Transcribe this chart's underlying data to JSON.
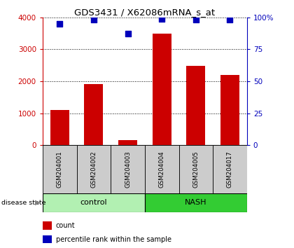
{
  "title": "GDS3431 / X62086mRNA_s_at",
  "samples": [
    "GSM204001",
    "GSM204002",
    "GSM204003",
    "GSM204004",
    "GSM204005",
    "GSM204017"
  ],
  "counts": [
    1100,
    1920,
    160,
    3480,
    2480,
    2200
  ],
  "percentiles": [
    95,
    98,
    87,
    99,
    98,
    98
  ],
  "bar_color": "#CC0000",
  "dot_color": "#0000BB",
  "ylim_left": [
    0,
    4000
  ],
  "ylim_right": [
    0,
    100
  ],
  "yticks_left": [
    0,
    1000,
    2000,
    3000,
    4000
  ],
  "yticks_right": [
    0,
    25,
    50,
    75,
    100
  ],
  "ytick_labels_right": [
    "0",
    "25",
    "50",
    "75",
    "100%"
  ],
  "tick_area_color": "#cccccc",
  "control_color": "#b2f0b2",
  "nash_color": "#33cc33",
  "n_control": 3,
  "n_nash": 3
}
